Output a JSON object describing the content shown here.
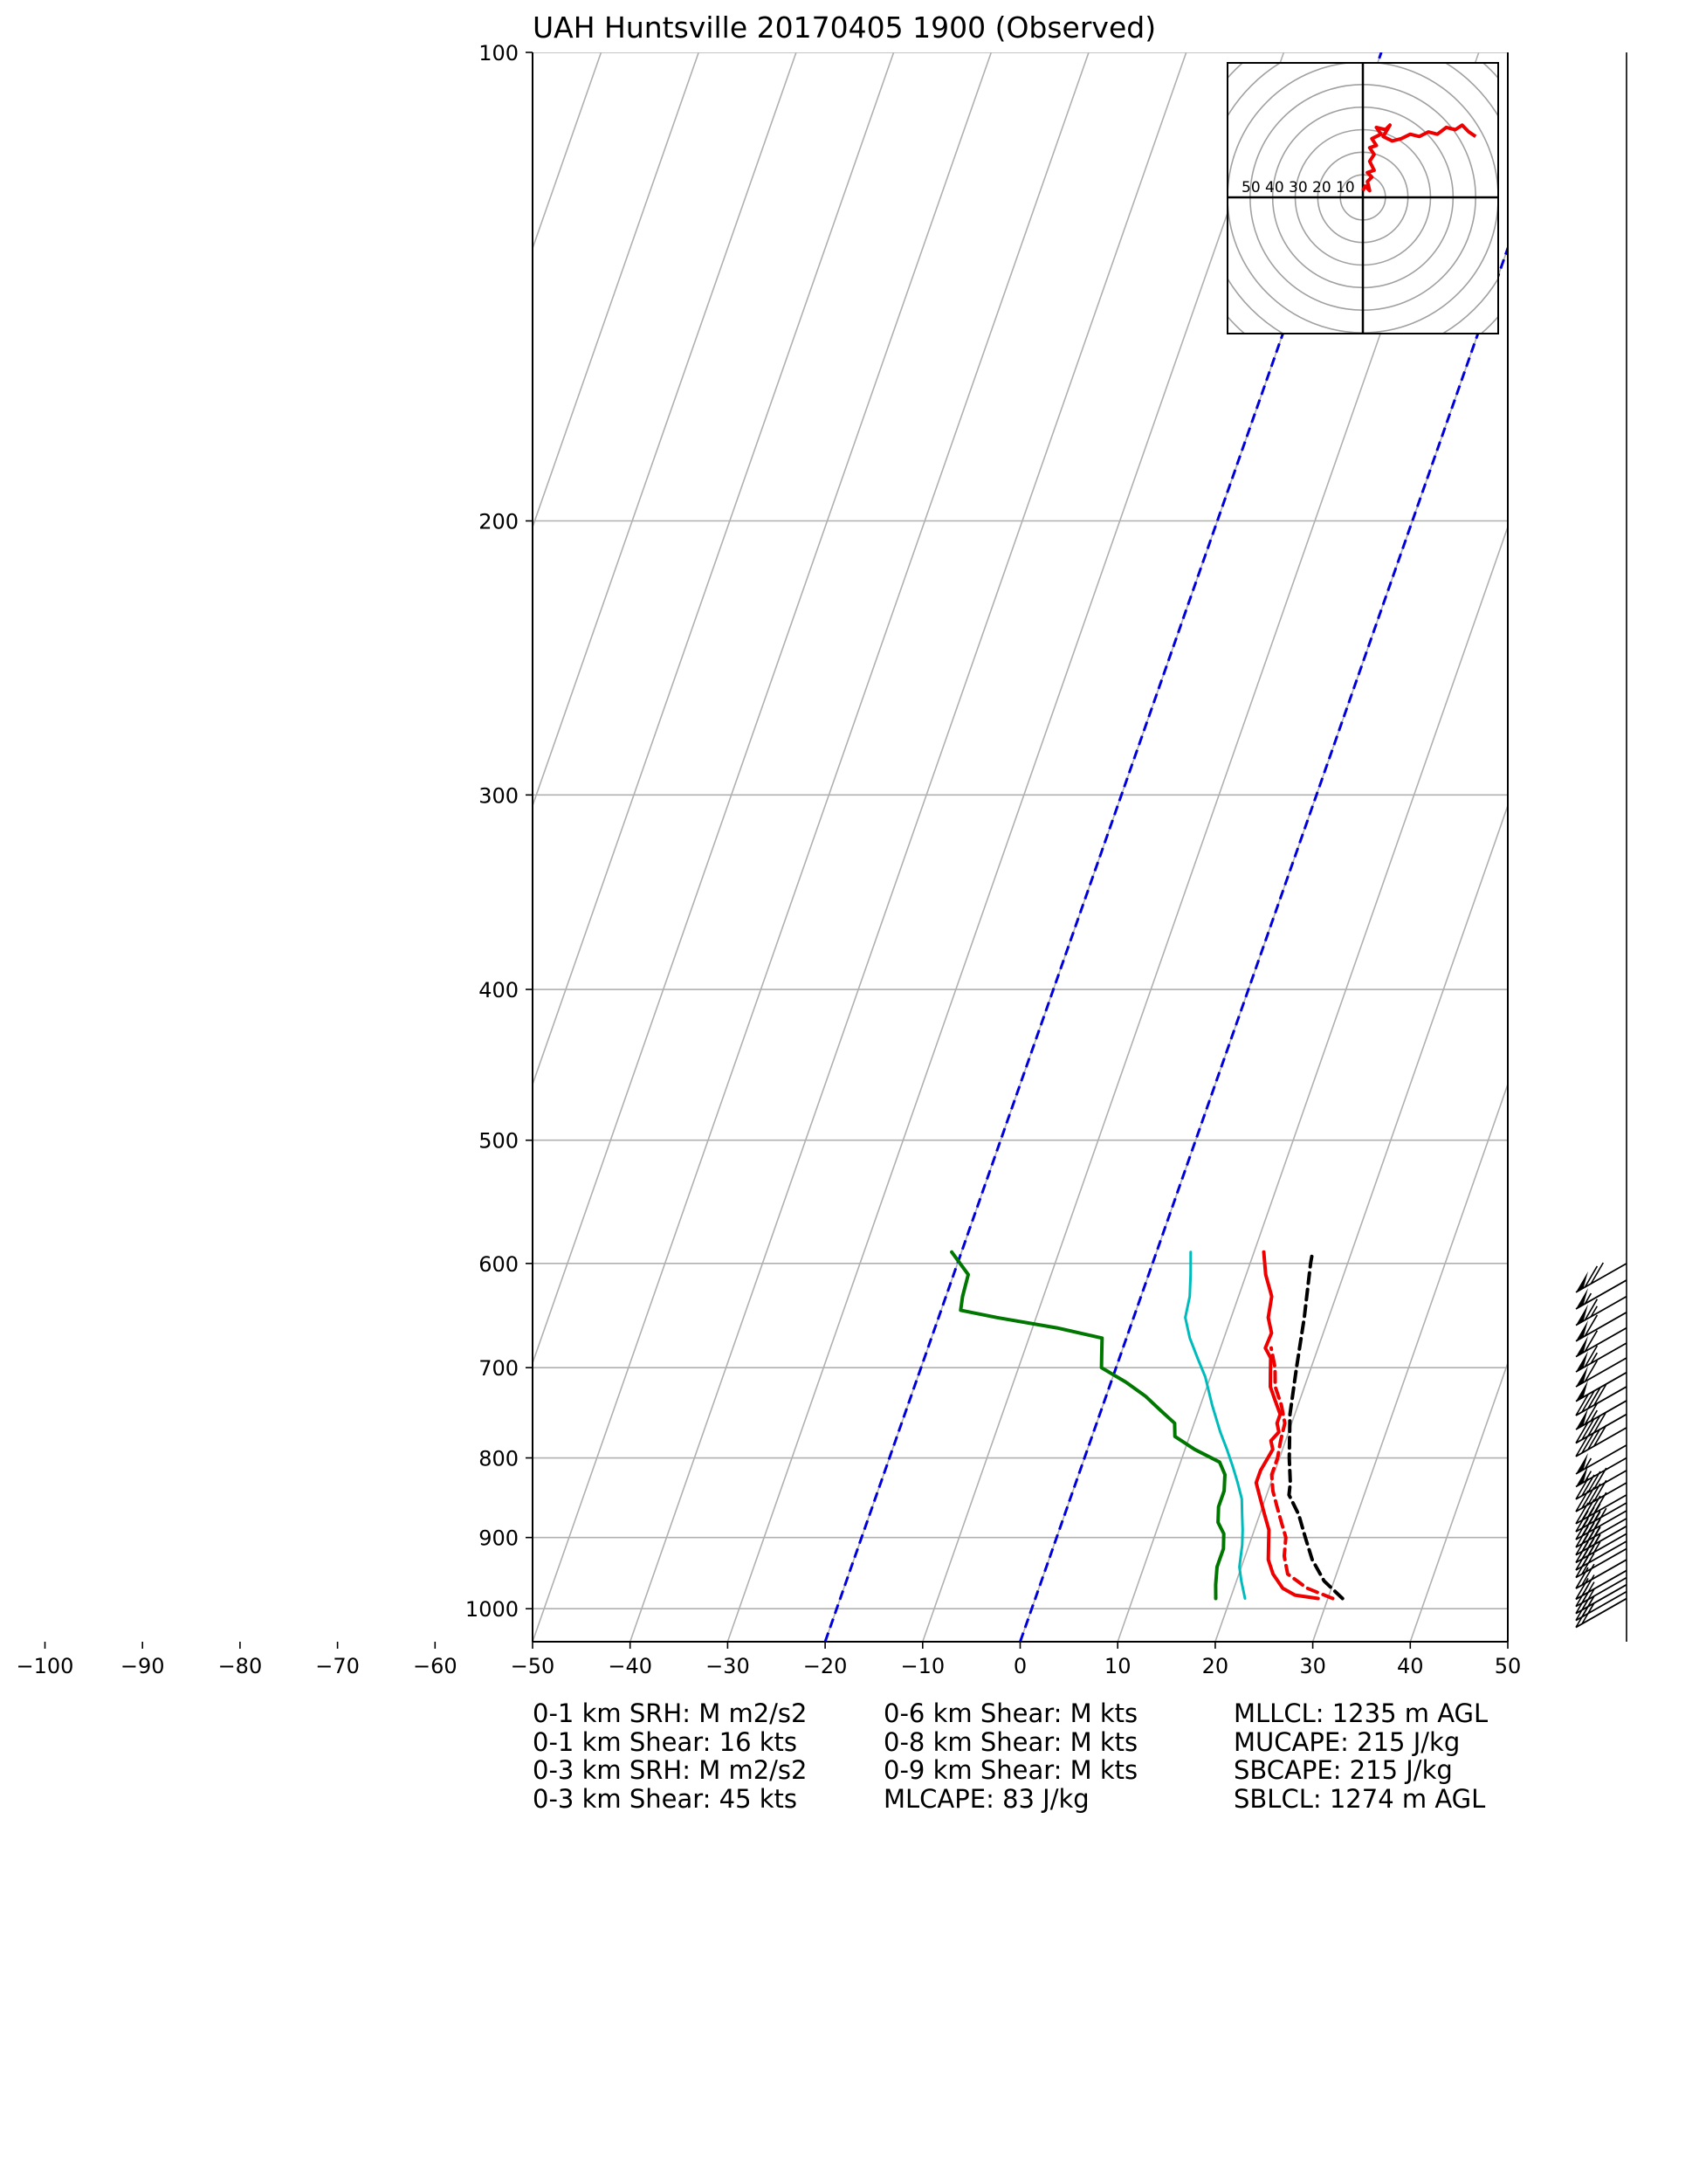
{
  "chart_data": {
    "type": "skew-t",
    "title": "UAH Huntsville 20170405 1900   (Observed)",
    "x_ticks": [
      -100,
      -90,
      -80,
      -70,
      -60,
      -50,
      -40,
      -30,
      -20,
      -10,
      0,
      10,
      20,
      30,
      40,
      50
    ],
    "y_ticks": [
      100,
      200,
      300,
      400,
      500,
      600,
      700,
      800,
      900,
      1000
    ],
    "xlim": [
      -50,
      50
    ],
    "ylim": [
      1050,
      100
    ],
    "y_scale": "log",
    "grid": true,
    "isotherms_dashed_blue": [
      -20,
      0
    ],
    "series": [
      {
        "key": "temperature",
        "color": "#ee0000",
        "style": "solid",
        "points": [
          [
            985,
            29.0
          ],
          [
            980,
            26.5
          ],
          [
            970,
            25.0
          ],
          [
            950,
            23.5
          ],
          [
            930,
            22.5
          ],
          [
            910,
            22.0
          ],
          [
            890,
            21.5
          ],
          [
            870,
            20.5
          ],
          [
            850,
            19.5
          ],
          [
            830,
            18.5
          ],
          [
            815,
            18.5
          ],
          [
            800,
            18.8
          ],
          [
            790,
            19.0
          ],
          [
            780,
            18.5
          ],
          [
            770,
            19.0
          ],
          [
            760,
            18.5
          ],
          [
            750,
            18.5
          ],
          [
            735,
            17.5
          ],
          [
            720,
            16.5
          ],
          [
            705,
            16.0
          ],
          [
            690,
            15.5
          ],
          [
            680,
            14.6
          ],
          [
            665,
            14.7
          ],
          [
            650,
            13.8
          ],
          [
            630,
            13.4
          ],
          [
            610,
            12.0
          ],
          [
            590,
            11.0
          ]
        ]
      },
      {
        "key": "virtual-temperature",
        "color": "#ee0000",
        "style": "dashed",
        "points": [
          [
            985,
            30.5
          ],
          [
            970,
            27.5
          ],
          [
            950,
            25.0
          ],
          [
            925,
            24.0
          ],
          [
            900,
            23.5
          ],
          [
            880,
            22.5
          ],
          [
            860,
            21.5
          ],
          [
            840,
            20.5
          ],
          [
            820,
            19.8
          ],
          [
            800,
            19.8
          ],
          [
            780,
            19.5
          ],
          [
            760,
            19.3
          ],
          [
            740,
            18.3
          ],
          [
            720,
            17.0
          ],
          [
            700,
            16.3
          ],
          [
            680,
            15.2
          ]
        ]
      },
      {
        "key": "dewpoint",
        "color": "#007700",
        "style": "solid",
        "points": [
          [
            985,
            18.5
          ],
          [
            965,
            18.0
          ],
          [
            940,
            17.5
          ],
          [
            915,
            17.5
          ],
          [
            895,
            17.0
          ],
          [
            880,
            16.0
          ],
          [
            860,
            15.5
          ],
          [
            840,
            15.5
          ],
          [
            820,
            15.0
          ],
          [
            805,
            14.0
          ],
          [
            790,
            11.0
          ],
          [
            775,
            8.5
          ],
          [
            760,
            8.0
          ],
          [
            745,
            6.0
          ],
          [
            730,
            4.0
          ],
          [
            715,
            1.5
          ],
          [
            700,
            -1.5
          ],
          [
            685,
            -2.0
          ],
          [
            670,
            -2.5
          ],
          [
            660,
            -7.5
          ],
          [
            650,
            -14.0
          ],
          [
            643,
            -18.0
          ],
          [
            630,
            -18.3
          ],
          [
            610,
            -18.5
          ],
          [
            590,
            -21.0
          ]
        ]
      },
      {
        "key": "wet-bulb",
        "color": "#00bbbb",
        "style": "solid",
        "points": [
          [
            985,
            21.5
          ],
          [
            960,
            20.5
          ],
          [
            940,
            19.8
          ],
          [
            910,
            19.3
          ],
          [
            890,
            18.8
          ],
          [
            870,
            18.2
          ],
          [
            850,
            17.6
          ],
          [
            830,
            16.6
          ],
          [
            810,
            15.5
          ],
          [
            790,
            14.3
          ],
          [
            770,
            13.0
          ],
          [
            740,
            11.2
          ],
          [
            710,
            9.5
          ],
          [
            690,
            8.0
          ],
          [
            670,
            6.5
          ],
          [
            650,
            5.3
          ],
          [
            630,
            5.0
          ],
          [
            610,
            4.3
          ],
          [
            590,
            3.5
          ]
        ]
      },
      {
        "key": "parcel",
        "color": "#000000",
        "style": "dashed",
        "points": [
          [
            985,
            31.5
          ],
          [
            960,
            29.0
          ],
          [
            930,
            27.0
          ],
          [
            900,
            25.5
          ],
          [
            870,
            24.0
          ],
          [
            845,
            22.3
          ],
          [
            830,
            22.0
          ],
          [
            800,
            21.0
          ],
          [
            750,
            19.5
          ],
          [
            700,
            18.5
          ],
          [
            650,
            17.5
          ],
          [
            600,
            16.2
          ],
          [
            590,
            16.0
          ]
        ]
      }
    ],
    "wind_barbs": [
      {
        "p": 985,
        "speed_kt": 20
      },
      {
        "p": 975,
        "speed_kt": 25
      },
      {
        "p": 965,
        "speed_kt": 25
      },
      {
        "p": 955,
        "speed_kt": 20
      },
      {
        "p": 945,
        "speed_kt": 20
      },
      {
        "p": 930,
        "speed_kt": 20
      },
      {
        "p": 915,
        "speed_kt": 20
      },
      {
        "p": 905,
        "speed_kt": 20
      },
      {
        "p": 895,
        "speed_kt": 35
      },
      {
        "p": 885,
        "speed_kt": 35
      },
      {
        "p": 875,
        "speed_kt": 35
      },
      {
        "p": 865,
        "speed_kt": 40
      },
      {
        "p": 855,
        "speed_kt": 35
      },
      {
        "p": 845,
        "speed_kt": 40
      },
      {
        "p": 830,
        "speed_kt": 40
      },
      {
        "p": 815,
        "speed_kt": 40
      },
      {
        "p": 800,
        "speed_kt": 55
      },
      {
        "p": 785,
        "speed_kt": 55
      },
      {
        "p": 765,
        "speed_kt": 40
      },
      {
        "p": 750,
        "speed_kt": 40
      },
      {
        "p": 735,
        "speed_kt": 65
      },
      {
        "p": 720,
        "speed_kt": 40
      },
      {
        "p": 705,
        "speed_kt": 50
      },
      {
        "p": 690,
        "speed_kt": 60
      },
      {
        "p": 675,
        "speed_kt": 65
      },
      {
        "p": 660,
        "speed_kt": 60
      },
      {
        "p": 645,
        "speed_kt": 60
      },
      {
        "p": 630,
        "speed_kt": 65
      },
      {
        "p": 615,
        "speed_kt": 55
      },
      {
        "p": 600,
        "speed_kt": 70
      }
    ],
    "hodograph": {
      "ring_labels": [
        "50",
        "40",
        "30",
        "20",
        "10"
      ],
      "color": "#ee0000",
      "points": [
        [
          0,
          3
        ],
        [
          1,
          5
        ],
        [
          3,
          3
        ],
        [
          2,
          7
        ],
        [
          4,
          9
        ],
        [
          2,
          11
        ],
        [
          5,
          12
        ],
        [
          3,
          16
        ],
        [
          5,
          19
        ],
        [
          3,
          22
        ],
        [
          6,
          23
        ],
        [
          4,
          26
        ],
        [
          8,
          28
        ],
        [
          6,
          31
        ],
        [
          10,
          30
        ],
        [
          12,
          32
        ],
        [
          9,
          27
        ],
        [
          13,
          25
        ],
        [
          17,
          26
        ],
        [
          21,
          28
        ],
        [
          25,
          27
        ],
        [
          29,
          29
        ],
        [
          33,
          28
        ],
        [
          37,
          31
        ],
        [
          41,
          30
        ],
        [
          44,
          32
        ],
        [
          47,
          29
        ],
        [
          50,
          27
        ]
      ]
    }
  },
  "stats": {
    "col1": [
      "0-1 km SRH: M m2/s2",
      "0-1 km Shear: 16 kts",
      "0-3 km SRH: M m2/s2",
      "0-3 km Shear: 45 kts"
    ],
    "col2": [
      "0-6 km Shear: M kts",
      "0-8 km Shear: M kts",
      "0-9 km Shear: M kts",
      "MLCAPE: 83 J/kg"
    ],
    "col3": [
      "MLLCL: 1235 m AGL",
      "MUCAPE: 215 J/kg",
      "SBCAPE: 215 J/kg",
      "SBLCL: 1274 m AGL"
    ]
  }
}
